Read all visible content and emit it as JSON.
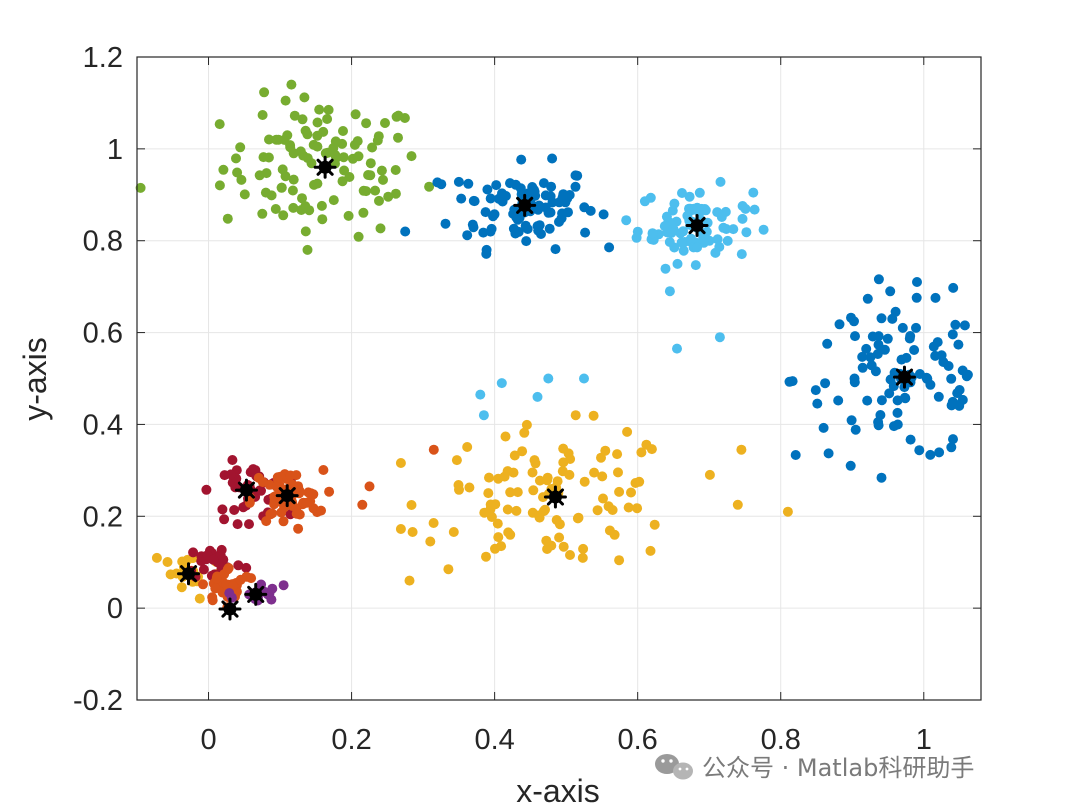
{
  "chart_data": {
    "type": "scatter",
    "title": "",
    "xlabel": "x-axis",
    "ylabel": "y-axis",
    "xlim": [
      -0.1,
      1.08
    ],
    "ylim": [
      -0.2,
      1.2
    ],
    "xticks": [
      0,
      0.2,
      0.4,
      0.6,
      0.8,
      1
    ],
    "xtick_labels": [
      "0",
      "0.2",
      "0.4",
      "0.6",
      "0.8",
      "1"
    ],
    "yticks": [
      -0.2,
      0,
      0.2,
      0.4,
      0.6,
      0.8,
      1,
      1.2
    ],
    "ytick_labels": [
      "-0.2",
      "0",
      "0.2",
      "0.4",
      "0.6",
      "0.8",
      "1",
      "1.2"
    ],
    "grid": true,
    "clusters": [
      {
        "color": "#77ac30",
        "center": [
          0.16,
          0.96
        ],
        "spread": [
          0.07,
          0.075
        ],
        "count": 110
      },
      {
        "color": "#0072bd",
        "center": [
          0.44,
          0.875
        ],
        "spread": [
          0.05,
          0.045
        ],
        "count": 95
      },
      {
        "color": "#4dbeee",
        "center": [
          0.68,
          0.835
        ],
        "spread": [
          0.04,
          0.04
        ],
        "count": 80
      },
      {
        "color": "#0072bd",
        "center": [
          0.97,
          0.5
        ],
        "spread": [
          0.075,
          0.09
        ],
        "count": 110
      },
      {
        "color": "#edb120",
        "center": [
          0.485,
          0.24
        ],
        "spread": [
          0.09,
          0.075
        ],
        "count": 105
      },
      {
        "color": "#a2142f",
        "center": [
          0.055,
          0.255
        ],
        "spread": [
          0.025,
          0.03
        ],
        "count": 45
      },
      {
        "color": "#d95319",
        "center": [
          0.11,
          0.24
        ],
        "spread": [
          0.025,
          0.03
        ],
        "count": 55
      },
      {
        "color": "#edb120",
        "center": [
          -0.03,
          0.075
        ],
        "spread": [
          0.025,
          0.03
        ],
        "count": 25
      },
      {
        "color": "#a2142f",
        "center": [
          0.01,
          0.1
        ],
        "spread": [
          0.02,
          0.02
        ],
        "count": 25
      },
      {
        "color": "#d95319",
        "center": [
          0.03,
          0.05
        ],
        "spread": [
          0.02,
          0.02
        ],
        "count": 30
      },
      {
        "color": "#7e2f8e",
        "center": [
          0.065,
          0.03
        ],
        "spread": [
          0.015,
          0.012
        ],
        "count": 15
      }
    ],
    "extra_points": [
      {
        "x": -0.095,
        "y": 0.915,
        "color": "#77ac30"
      },
      {
        "x": 0.275,
        "y": 0.82,
        "color": "#0072bd"
      },
      {
        "x": 0.225,
        "y": 0.265,
        "color": "#d95319"
      },
      {
        "x": 0.215,
        "y": 0.225,
        "color": "#d95319"
      },
      {
        "x": 0.315,
        "y": 0.345,
        "color": "#d95319"
      },
      {
        "x": 0.38,
        "y": 0.465,
        "color": "#4dbeee"
      },
      {
        "x": 0.41,
        "y": 0.49,
        "color": "#4dbeee"
      },
      {
        "x": 0.475,
        "y": 0.5,
        "color": "#4dbeee"
      },
      {
        "x": 0.525,
        "y": 0.5,
        "color": "#4dbeee"
      },
      {
        "x": 0.385,
        "y": 0.42,
        "color": "#4dbeee"
      },
      {
        "x": 0.46,
        "y": 0.46,
        "color": "#4dbeee"
      },
      {
        "x": 0.645,
        "y": 0.69,
        "color": "#4dbeee"
      },
      {
        "x": 0.655,
        "y": 0.565,
        "color": "#4dbeee"
      },
      {
        "x": 0.715,
        "y": 0.59,
        "color": "#4dbeee"
      },
      {
        "x": 0.745,
        "y": 0.345,
        "color": "#edb120"
      },
      {
        "x": 0.81,
        "y": 0.21,
        "color": "#edb120"
      },
      {
        "x": 0.74,
        "y": 0.225,
        "color": "#edb120"
      },
      {
        "x": 0.31,
        "y": 0.145,
        "color": "#edb120"
      },
      {
        "x": 0.105,
        "y": 0.05,
        "color": "#7e2f8e"
      }
    ],
    "centroids": [
      {
        "x": 0.163,
        "y": 0.96
      },
      {
        "x": 0.442,
        "y": 0.877
      },
      {
        "x": 0.683,
        "y": 0.833
      },
      {
        "x": 0.973,
        "y": 0.503
      },
      {
        "x": 0.485,
        "y": 0.242
      },
      {
        "x": 0.053,
        "y": 0.257
      },
      {
        "x": 0.11,
        "y": 0.245
      },
      {
        "x": -0.028,
        "y": 0.075
      },
      {
        "x": 0.03,
        "y": -0.002
      },
      {
        "x": 0.066,
        "y": 0.03
      }
    ],
    "centroid_color": "#000000"
  },
  "watermark": {
    "text": "公众号 · Matlab科研助手",
    "icon": "wechat-icon"
  }
}
